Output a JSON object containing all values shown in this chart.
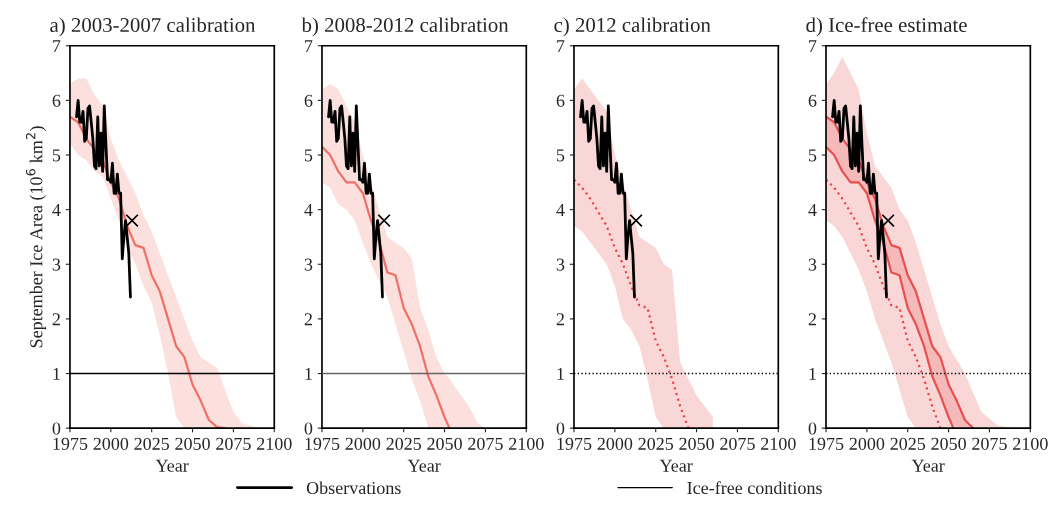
{
  "chart_data": [
    {
      "type": "line",
      "title": "a) 2003-2007 calibration",
      "xlabel": "Year",
      "ylabel": "September Ice Area (10$^{6}$ km$^{2}$)",
      "xlim": [
        1975,
        2100
      ],
      "xticks": [
        1975,
        2000,
        2025,
        2050,
        2075,
        2100
      ],
      "ylim": [
        0,
        7
      ],
      "yticks": [
        0,
        1,
        2,
        3,
        4,
        5,
        6,
        7
      ],
      "legend": "bottom",
      "ref_lines": [
        {
          "axis": "y",
          "value": 1,
          "label": "Ice-free conditions",
          "color": "#000000"
        }
      ],
      "series": [
        {
          "color": "#f07068",
          "x": [
            1975,
            1980,
            1985,
            1990,
            1995,
            2000,
            2005,
            2010,
            2015,
            2020,
            2025,
            2030,
            2035,
            2040,
            2045,
            2050,
            2055,
            2060,
            2065,
            2070,
            2075,
            2080,
            2085,
            2090
          ],
          "values": [
            5.7,
            5.6,
            5.3,
            5.1,
            4.9,
            4.5,
            4.2,
            3.7,
            3.35,
            3.3,
            2.8,
            2.5,
            2.0,
            1.5,
            1.3,
            0.8,
            0.5,
            0.15,
            0.02,
            0,
            null,
            null,
            null,
            null
          ],
          "lower": [
            5.2,
            5.0,
            4.9,
            4.7,
            4.6,
            4.2,
            3.8,
            3.3,
            3.0,
            2.6,
            2.3,
            1.7,
            1.0,
            0.2,
            0,
            0,
            0,
            0,
            0,
            0,
            0,
            0,
            0,
            0
          ],
          "upper": [
            6.3,
            6.4,
            6.4,
            6.1,
            5.9,
            5.3,
            4.9,
            4.6,
            4.3,
            3.9,
            3.6,
            3.2,
            2.8,
            2.4,
            2.0,
            1.6,
            1.3,
            1.2,
            1.1,
            0.7,
            0.3,
            0.1,
            0.05,
            0
          ]
        },
        {
          "name": "Observations",
          "color": "#000000",
          "x": [
            1979,
            1980,
            1981,
            1982,
            1983,
            1984,
            1985,
            1986,
            1987,
            1988,
            1989,
            1990,
            1991,
            1992,
            1993,
            1994,
            1995,
            1996,
            1997,
            1998,
            1999,
            2000,
            2001,
            2002,
            2003,
            2004,
            2005,
            2006,
            2007,
            2008,
            2009,
            2010,
            2011,
            2012
          ],
          "values": [
            5.7,
            6.0,
            5.6,
            5.6,
            5.8,
            5.25,
            5.3,
            5.85,
            5.9,
            5.6,
            5.3,
            4.8,
            4.75,
            5.7,
            4.8,
            5.4,
            4.7,
            5.9,
            5.2,
            4.55,
            4.55,
            4.5,
            4.85,
            4.3,
            4.3,
            4.65,
            4.3,
            4.3,
            3.1,
            3.5,
            3.8,
            3.5,
            3.2,
            2.4
          ]
        },
        {
          "type": "scatter",
          "marker": "cross",
          "color": "#000000",
          "x": [
            2013
          ],
          "values": [
            3.8
          ]
        }
      ]
    },
    {
      "type": "line",
      "title": "b) 2008-2012 calibration",
      "xlabel": "Year",
      "xlim": [
        1975,
        2100
      ],
      "xticks": [
        1975,
        2000,
        2025,
        2050,
        2075,
        2100
      ],
      "ylim": [
        0,
        7
      ],
      "yticks": [
        0,
        1,
        2,
        3,
        4,
        5,
        6,
        7
      ],
      "ref_lines": [
        {
          "axis": "y",
          "value": 1,
          "color": "#666666"
        }
      ],
      "series": [
        {
          "color": "#f07068",
          "x": [
            1975,
            1980,
            1985,
            1990,
            1995,
            2000,
            2005,
            2010,
            2015,
            2020,
            2025,
            2030,
            2035,
            2040,
            2045,
            2050,
            2053,
            2060,
            2065,
            2070,
            2075
          ],
          "values": [
            5.15,
            5.0,
            4.7,
            4.5,
            4.5,
            4.3,
            3.8,
            3.4,
            2.85,
            2.8,
            2.2,
            1.9,
            1.5,
            0.95,
            0.6,
            0.2,
            0,
            null,
            null,
            null,
            null
          ],
          "lower": [
            4.5,
            4.4,
            4.1,
            4.0,
            3.8,
            3.4,
            3.0,
            2.7,
            2.4,
            1.9,
            1.4,
            0.9,
            0.5,
            0,
            0,
            0,
            0,
            0,
            0,
            0,
            0
          ],
          "upper": [
            6.2,
            6.3,
            6.2,
            5.9,
            5.6,
            5.0,
            4.5,
            4.0,
            3.5,
            3.4,
            3.3,
            3.1,
            2.2,
            1.8,
            1.3,
            1.0,
            0.9,
            0.6,
            0.4,
            0.1,
            0
          ]
        },
        {
          "color": "#000000",
          "x": [
            1979,
            1980,
            1981,
            1982,
            1983,
            1984,
            1985,
            1986,
            1987,
            1988,
            1989,
            1990,
            1991,
            1992,
            1993,
            1994,
            1995,
            1996,
            1997,
            1998,
            1999,
            2000,
            2001,
            2002,
            2003,
            2004,
            2005,
            2006,
            2007,
            2008,
            2009,
            2010,
            2011,
            2012
          ],
          "values": [
            5.7,
            6.0,
            5.6,
            5.6,
            5.8,
            5.25,
            5.3,
            5.85,
            5.9,
            5.6,
            5.3,
            4.8,
            4.75,
            5.7,
            4.8,
            5.4,
            4.7,
            5.9,
            5.2,
            4.55,
            4.55,
            4.5,
            4.85,
            4.3,
            4.3,
            4.65,
            4.3,
            4.3,
            3.1,
            3.5,
            3.8,
            3.5,
            3.2,
            2.4
          ]
        },
        {
          "type": "scatter",
          "marker": "cross",
          "color": "#000000",
          "x": [
            2013
          ],
          "values": [
            3.8
          ]
        }
      ]
    },
    {
      "type": "line",
      "title": "c) 2012 calibration",
      "xlabel": "Year",
      "xlim": [
        1975,
        2100
      ],
      "xticks": [
        1975,
        2000,
        2025,
        2050,
        2075,
        2100
      ],
      "ylim": [
        0,
        7
      ],
      "yticks": [
        0,
        1,
        2,
        3,
        4,
        5,
        6,
        7
      ],
      "ref_lines": [
        {
          "axis": "y",
          "value": 1,
          "color": "#000000",
          "line_style": "dotted"
        }
      ],
      "series": [
        {
          "line_style": "dotted",
          "color": "#e84848",
          "x": [
            1975,
            1980,
            1985,
            1990,
            1995,
            2000,
            2005,
            2010,
            2015,
            2020,
            2025,
            2030,
            2035,
            2040,
            2045,
            2050,
            2055,
            2060
          ],
          "values": [
            4.55,
            4.4,
            4.2,
            3.95,
            3.7,
            3.3,
            3.0,
            2.6,
            2.25,
            2.2,
            1.6,
            1.3,
            0.9,
            0.4,
            0,
            null,
            null,
            null
          ],
          "lower": [
            3.7,
            3.6,
            3.4,
            3.2,
            3.0,
            2.6,
            2.0,
            1.8,
            1.5,
            0.9,
            0.2,
            0,
            0,
            0,
            0,
            0,
            0,
            0
          ],
          "upper": [
            6.2,
            6.4,
            6.2,
            6.0,
            5.8,
            5.0,
            4.5,
            4.0,
            3.5,
            3.4,
            3.3,
            3.0,
            2.9,
            1.2,
            0.9,
            0.6,
            0.4,
            0.2
          ]
        },
        {
          "color": "#000000",
          "x": [
            1979,
            1980,
            1981,
            1982,
            1983,
            1984,
            1985,
            1986,
            1987,
            1988,
            1989,
            1990,
            1991,
            1992,
            1993,
            1994,
            1995,
            1996,
            1997,
            1998,
            1999,
            2000,
            2001,
            2002,
            2003,
            2004,
            2005,
            2006,
            2007,
            2008,
            2009,
            2010,
            2011,
            2012
          ],
          "values": [
            5.7,
            6.0,
            5.6,
            5.6,
            5.8,
            5.25,
            5.3,
            5.85,
            5.9,
            5.6,
            5.3,
            4.8,
            4.75,
            5.7,
            4.8,
            5.4,
            4.7,
            5.9,
            5.2,
            4.55,
            4.55,
            4.5,
            4.85,
            4.3,
            4.3,
            4.65,
            4.3,
            4.3,
            3.1,
            3.5,
            3.8,
            3.5,
            3.2,
            2.4
          ]
        },
        {
          "type": "scatter",
          "marker": "cross",
          "color": "#000000",
          "x": [
            2013
          ],
          "values": [
            3.8
          ]
        }
      ]
    },
    {
      "type": "line",
      "title": "d) Ice-free estimate",
      "xlabel": "Year",
      "xlim": [
        1975,
        2100
      ],
      "xticks": [
        1975,
        2000,
        2025,
        2050,
        2075,
        2100
      ],
      "ylim": [
        0,
        7
      ],
      "yticks": [
        0,
        1,
        2,
        3,
        4,
        5,
        6,
        7
      ],
      "ref_lines": [
        {
          "axis": "y",
          "value": 1,
          "color": "#000000",
          "line_style": "dotted"
        }
      ],
      "series": [
        {
          "line_style": "dotted",
          "color": "#e84848",
          "x": [
            1975,
            1980,
            1985,
            1990,
            1995,
            2000,
            2005,
            2010,
            2015,
            2020,
            2025,
            2030,
            2035,
            2040,
            2045,
            2050,
            2060,
            2070,
            2080,
            2090,
            2100
          ],
          "values": [
            4.55,
            4.4,
            4.2,
            3.95,
            3.7,
            3.3,
            3.0,
            2.6,
            2.25,
            2.2,
            1.6,
            1.3,
            0.9,
            0.4,
            0,
            null,
            null,
            null,
            null,
            null,
            null
          ],
          "lower": [
            3.8,
            3.7,
            3.5,
            3.2,
            2.9,
            2.5,
            2.0,
            1.6,
            1.2,
            0.7,
            0.2,
            0,
            0,
            0,
            0,
            0,
            0,
            0,
            0,
            0,
            0
          ],
          "upper": [
            6.3,
            6.5,
            6.8,
            6.5,
            6.2,
            5.4,
            4.8,
            4.6,
            4.4,
            4.0,
            3.8,
            3.4,
            2.9,
            2.4,
            1.9,
            1.5,
            1.0,
            0.3,
            0.05,
            0,
            0
          ]
        },
        {
          "color": "#e85050",
          "x": [
            1975,
            1980,
            1985,
            1990,
            1995,
            2000,
            2005,
            2010,
            2015,
            2020,
            2025,
            2030,
            2035,
            2040,
            2045,
            2050,
            2055,
            2060,
            2065
          ],
          "values": [
            5.7,
            5.6,
            5.3,
            5.1,
            4.9,
            4.5,
            4.2,
            3.7,
            3.35,
            3.3,
            2.8,
            2.5,
            2.0,
            1.5,
            1.3,
            0.8,
            0.5,
            0.15,
            0
          ],
          "lower": [
            5.15,
            5.0,
            4.7,
            4.5,
            4.5,
            4.3,
            3.8,
            3.4,
            2.85,
            2.8,
            2.2,
            1.9,
            1.5,
            0.95,
            0.6,
            0.2,
            0,
            0,
            0
          ],
          "upper": [
            5.7,
            5.6,
            5.3,
            5.1,
            4.9,
            4.5,
            4.2,
            3.7,
            3.35,
            3.3,
            2.8,
            2.5,
            2.0,
            1.5,
            1.3,
            0.8,
            0.5,
            0.15,
            0
          ]
        },
        {
          "color": "#e85050",
          "x": [
            1975,
            1980,
            1985,
            1990,
            1995,
            2000,
            2005,
            2010,
            2015,
            2020,
            2025,
            2030,
            2035,
            2040,
            2045,
            2050,
            2053
          ],
          "values": [
            5.15,
            5.0,
            4.7,
            4.5,
            4.5,
            4.3,
            3.8,
            3.4,
            2.85,
            2.8,
            2.2,
            1.9,
            1.5,
            0.95,
            0.6,
            0.2,
            0
          ]
        },
        {
          "color": "#000000",
          "x": [
            1979,
            1980,
            1981,
            1982,
            1983,
            1984,
            1985,
            1986,
            1987,
            1988,
            1989,
            1990,
            1991,
            1992,
            1993,
            1994,
            1995,
            1996,
            1997,
            1998,
            1999,
            2000,
            2001,
            2002,
            2003,
            2004,
            2005,
            2006,
            2007,
            2008,
            2009,
            2010,
            2011,
            2012
          ],
          "values": [
            5.7,
            6.0,
            5.6,
            5.6,
            5.8,
            5.25,
            5.3,
            5.85,
            5.9,
            5.6,
            5.3,
            4.8,
            4.75,
            5.7,
            4.8,
            5.4,
            4.7,
            5.9,
            5.2,
            4.55,
            4.55,
            4.5,
            4.85,
            4.3,
            4.3,
            4.65,
            4.3,
            4.3,
            3.1,
            3.5,
            3.8,
            3.5,
            3.2,
            2.4
          ]
        },
        {
          "type": "scatter",
          "marker": "cross",
          "color": "#000000",
          "x": [
            2013
          ],
          "values": [
            3.8
          ]
        }
      ]
    }
  ]
}
